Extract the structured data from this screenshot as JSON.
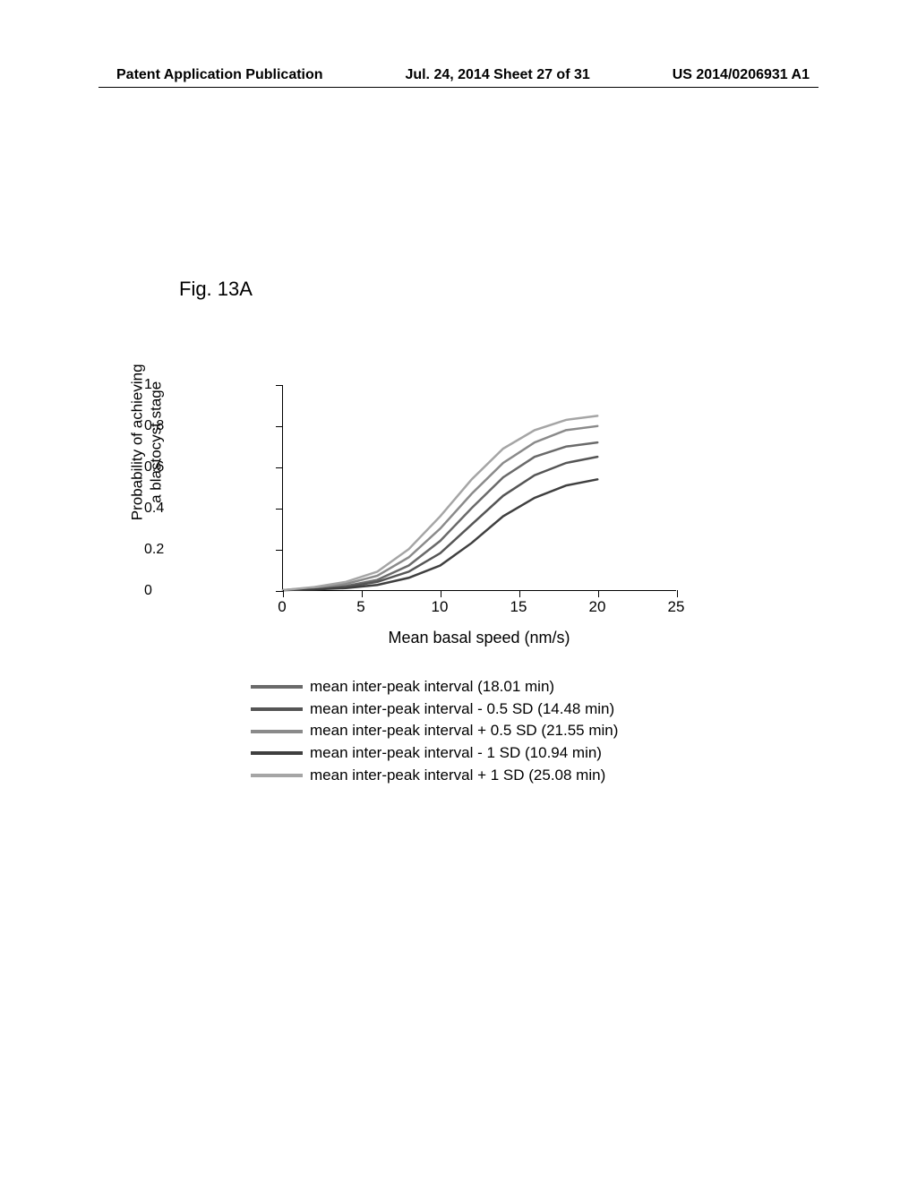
{
  "header": {
    "left": "Patent Application Publication",
    "center": "Jul. 24, 2014  Sheet 27 of 31",
    "right": "US 2014/0206931 A1"
  },
  "figure_label": "Fig. 13A",
  "chart": {
    "type": "line",
    "y_axis_label": "Probability of achieving\na blastocyst stage",
    "x_axis_label": "Mean basal speed (nm/s)",
    "xlim": [
      0,
      25
    ],
    "ylim": [
      0,
      1
    ],
    "x_ticks": [
      0,
      5,
      10,
      15,
      20,
      25
    ],
    "y_ticks": [
      0,
      0.2,
      0.4,
      0.6,
      0.8,
      1
    ],
    "background_color": "#ffffff",
    "axis_color": "#000000",
    "label_fontsize": 17,
    "tick_fontsize": 16,
    "line_width": 2.5,
    "series": [
      {
        "label": "mean inter-peak interval (18.01 min)",
        "color": "#6a6a6a",
        "x": [
          0,
          2,
          4,
          6,
          8,
          10,
          12,
          14,
          16,
          18,
          20
        ],
        "y": [
          0.0,
          0.01,
          0.02,
          0.05,
          0.12,
          0.24,
          0.4,
          0.55,
          0.65,
          0.7,
          0.72
        ]
      },
      {
        "label": "mean inter-peak interval - 0.5 SD (14.48 min)",
        "color": "#555555",
        "x": [
          0,
          2,
          4,
          6,
          8,
          10,
          12,
          14,
          16,
          18,
          20
        ],
        "y": [
          0.0,
          0.005,
          0.015,
          0.04,
          0.09,
          0.18,
          0.32,
          0.46,
          0.56,
          0.62,
          0.65
        ]
      },
      {
        "label": "mean inter-peak interval + 0.5 SD (21.55 min)",
        "color": "#8a8a8a",
        "x": [
          0,
          2,
          4,
          6,
          8,
          10,
          12,
          14,
          16,
          18,
          20
        ],
        "y": [
          0.0,
          0.012,
          0.03,
          0.07,
          0.16,
          0.3,
          0.47,
          0.62,
          0.72,
          0.78,
          0.8
        ]
      },
      {
        "label": "mean inter-peak interval - 1 SD (10.94 min)",
        "color": "#3f3f3f",
        "x": [
          0,
          2,
          4,
          6,
          8,
          10,
          12,
          14,
          16,
          18,
          20
        ],
        "y": [
          0.0,
          0.003,
          0.01,
          0.025,
          0.06,
          0.12,
          0.23,
          0.36,
          0.45,
          0.51,
          0.54
        ]
      },
      {
        "label": "mean inter-peak interval + 1 SD (25.08 min)",
        "color": "#a5a5a5",
        "x": [
          0,
          2,
          4,
          6,
          8,
          10,
          12,
          14,
          16,
          18,
          20
        ],
        "y": [
          0.0,
          0.015,
          0.04,
          0.09,
          0.2,
          0.36,
          0.54,
          0.69,
          0.78,
          0.83,
          0.85
        ]
      }
    ]
  }
}
